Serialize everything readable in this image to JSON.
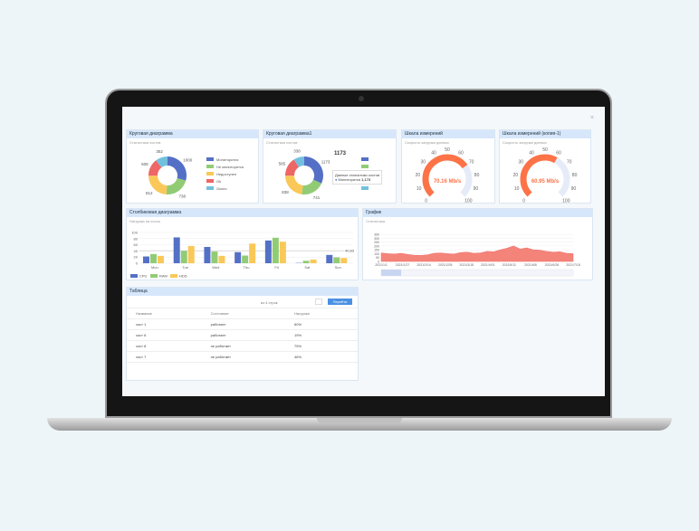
{
  "pie1": {
    "title": "Круговая диаграмма",
    "subtitle": "Статистика хостов",
    "labels": [
      "Мониторится",
      "Не мониторится",
      "Недоступен",
      "Ok",
      "Около"
    ],
    "values": [
      1000,
      738,
      812,
      508,
      352
    ],
    "colors": [
      "#5470c6",
      "#91cc75",
      "#fac858",
      "#ee6666",
      "#73c0de"
    ]
  },
  "pie2": {
    "title": "Круговая диаграмма1",
    "subtitle": "Статистика хостов",
    "values": [
      1173,
      741,
      838,
      585,
      338
    ],
    "tooltip_title": "Данные статистики хостов",
    "tooltip_name": "Мониторится",
    "tooltip_value": "1,173",
    "highlight": "1173"
  },
  "gauge1": {
    "title": "Шкала измерений",
    "subtitle": "Скорость загрузки данных",
    "value": 70.16,
    "label": "70.16 Mb/s"
  },
  "gauge2": {
    "title": "Шкала измерений (копия-1)",
    "subtitle": "Скорость загрузки данных",
    "value": 60.95,
    "label": "60.95 Mb/s"
  },
  "gauge_ticks": [
    "0",
    "10",
    "20",
    "30",
    "40",
    "50",
    "60",
    "70",
    "80",
    "90",
    "100"
  ],
  "chart_data": [
    {
      "type": "bar",
      "title": "Столбиковая диаграмма",
      "subtitle": "Нагрузка на хосты",
      "categories": [
        "Mon",
        "Tue",
        "Wed",
        "Thu",
        "Fri",
        "Sat",
        "Sun"
      ],
      "ylim": [
        0,
        100
      ],
      "yticks": [
        "0",
        "20",
        "40",
        "60",
        "80",
        "100"
      ],
      "markline": 40.83,
      "markline_label": "40.83",
      "series": [
        {
          "name": "CPU",
          "values": [
            22,
            84,
            53,
            36,
            74,
            1,
            27
          ],
          "color": "#5470c6"
        },
        {
          "name": "RAM",
          "values": [
            30,
            40,
            38,
            25,
            83,
            8,
            19
          ],
          "color": "#91cc75"
        },
        {
          "name": "HDD",
          "values": [
            24,
            56,
            24,
            64,
            70,
            12,
            17
          ],
          "color": "#fac858"
        }
      ]
    },
    {
      "type": "area",
      "title": "График",
      "subtitle": "Статистика",
      "xticks": [
        "2021/1/1",
        "2021/1/27",
        "2021/2/14",
        "2021/2/28",
        "2021/3/18",
        "2021/4/01",
        "2021/5/11",
        "2021/6/8",
        "2021/6/26",
        "2021/7/18"
      ],
      "yticks": [
        "0",
        "50",
        "100",
        "150",
        "200",
        "250",
        "300",
        "350"
      ],
      "values": [
        110,
        100,
        95,
        105,
        90,
        80,
        78,
        85,
        105,
        110,
        100,
        95,
        115,
        120,
        105,
        110,
        130,
        125,
        150,
        170,
        200,
        160,
        175,
        150,
        145,
        130,
        120,
        125,
        105,
        100
      ]
    }
  ],
  "table": {
    "title": "Таблица",
    "pager": "из 4 строк",
    "go": "Перейти",
    "headers": [
      "Название",
      "Состояние",
      "Нагрузка"
    ],
    "rows": [
      [
        "хост 1",
        "работает",
        "60%"
      ],
      [
        "хост 6",
        "работает",
        "19%"
      ],
      [
        "хост 8",
        "не работает",
        "75%"
      ],
      [
        "хост 7",
        "не работает",
        "46%"
      ]
    ]
  }
}
